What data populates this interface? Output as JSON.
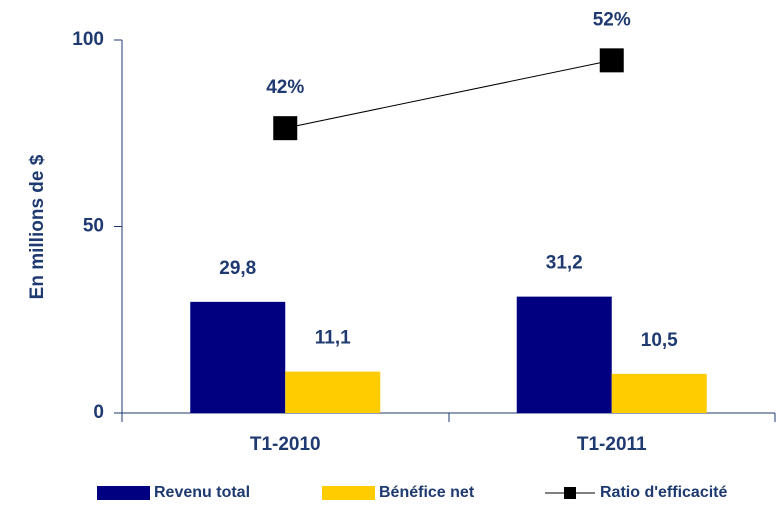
{
  "chart_data": {
    "type": "bar",
    "y_axis_label": "En millions de $",
    "categories": [
      "T1-2010",
      "T1-2011"
    ],
    "ylim": [
      0,
      100
    ],
    "yticks": [
      0,
      50,
      100
    ],
    "y2lim": [
      0,
      55
    ],
    "series": [
      {
        "name": "Revenu total",
        "color": "#000080",
        "values": [
          29.8,
          31.2
        ],
        "value_labels": [
          "29,8",
          "31,2"
        ]
      },
      {
        "name": "Bénéfice net",
        "color": "#ffcc00",
        "values": [
          11.1,
          10.5
        ],
        "value_labels": [
          "11,1",
          "10,5"
        ]
      },
      {
        "name": "Ratio d'efficacité",
        "type": "line",
        "axis": "y2",
        "color": "#000000",
        "values": [
          42,
          52
        ],
        "value_labels": [
          "42%",
          "52%"
        ]
      }
    ]
  }
}
